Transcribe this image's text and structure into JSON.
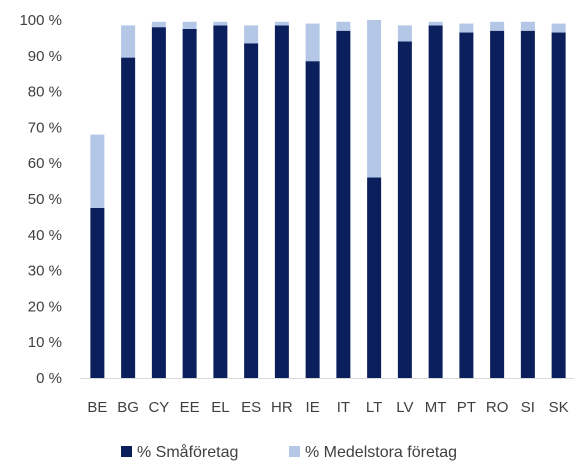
{
  "chart_data": {
    "type": "bar",
    "stacked": true,
    "categories": [
      "BE",
      "BG",
      "CY",
      "EE",
      "EL",
      "ES",
      "HR",
      "IE",
      "IT",
      "LT",
      "LV",
      "MT",
      "PT",
      "RO",
      "SI",
      "SK"
    ],
    "series": [
      {
        "name": "% Småföretag",
        "color": "#0a1f5c",
        "values": [
          47.5,
          89.5,
          98,
          97.5,
          98.5,
          93.5,
          98.5,
          88.5,
          97,
          56,
          94,
          98.5,
          96.5,
          97,
          97,
          96.5
        ]
      },
      {
        "name": "% Medelstora företag",
        "color": "#b4c7e7",
        "values": [
          20.5,
          9,
          1.5,
          2,
          1,
          5,
          1,
          10.5,
          2.5,
          44,
          4.5,
          1,
          2.5,
          2.5,
          2.5,
          2.5
        ]
      }
    ],
    "ylim": [
      0,
      100
    ],
    "yticks": [
      "0 %",
      "10 %",
      "20 %",
      "30 %",
      "40 %",
      "50 %",
      "60 %",
      "70 %",
      "80 %",
      "90 %",
      "100 %"
    ],
    "grid": false,
    "legend": "bottom"
  }
}
